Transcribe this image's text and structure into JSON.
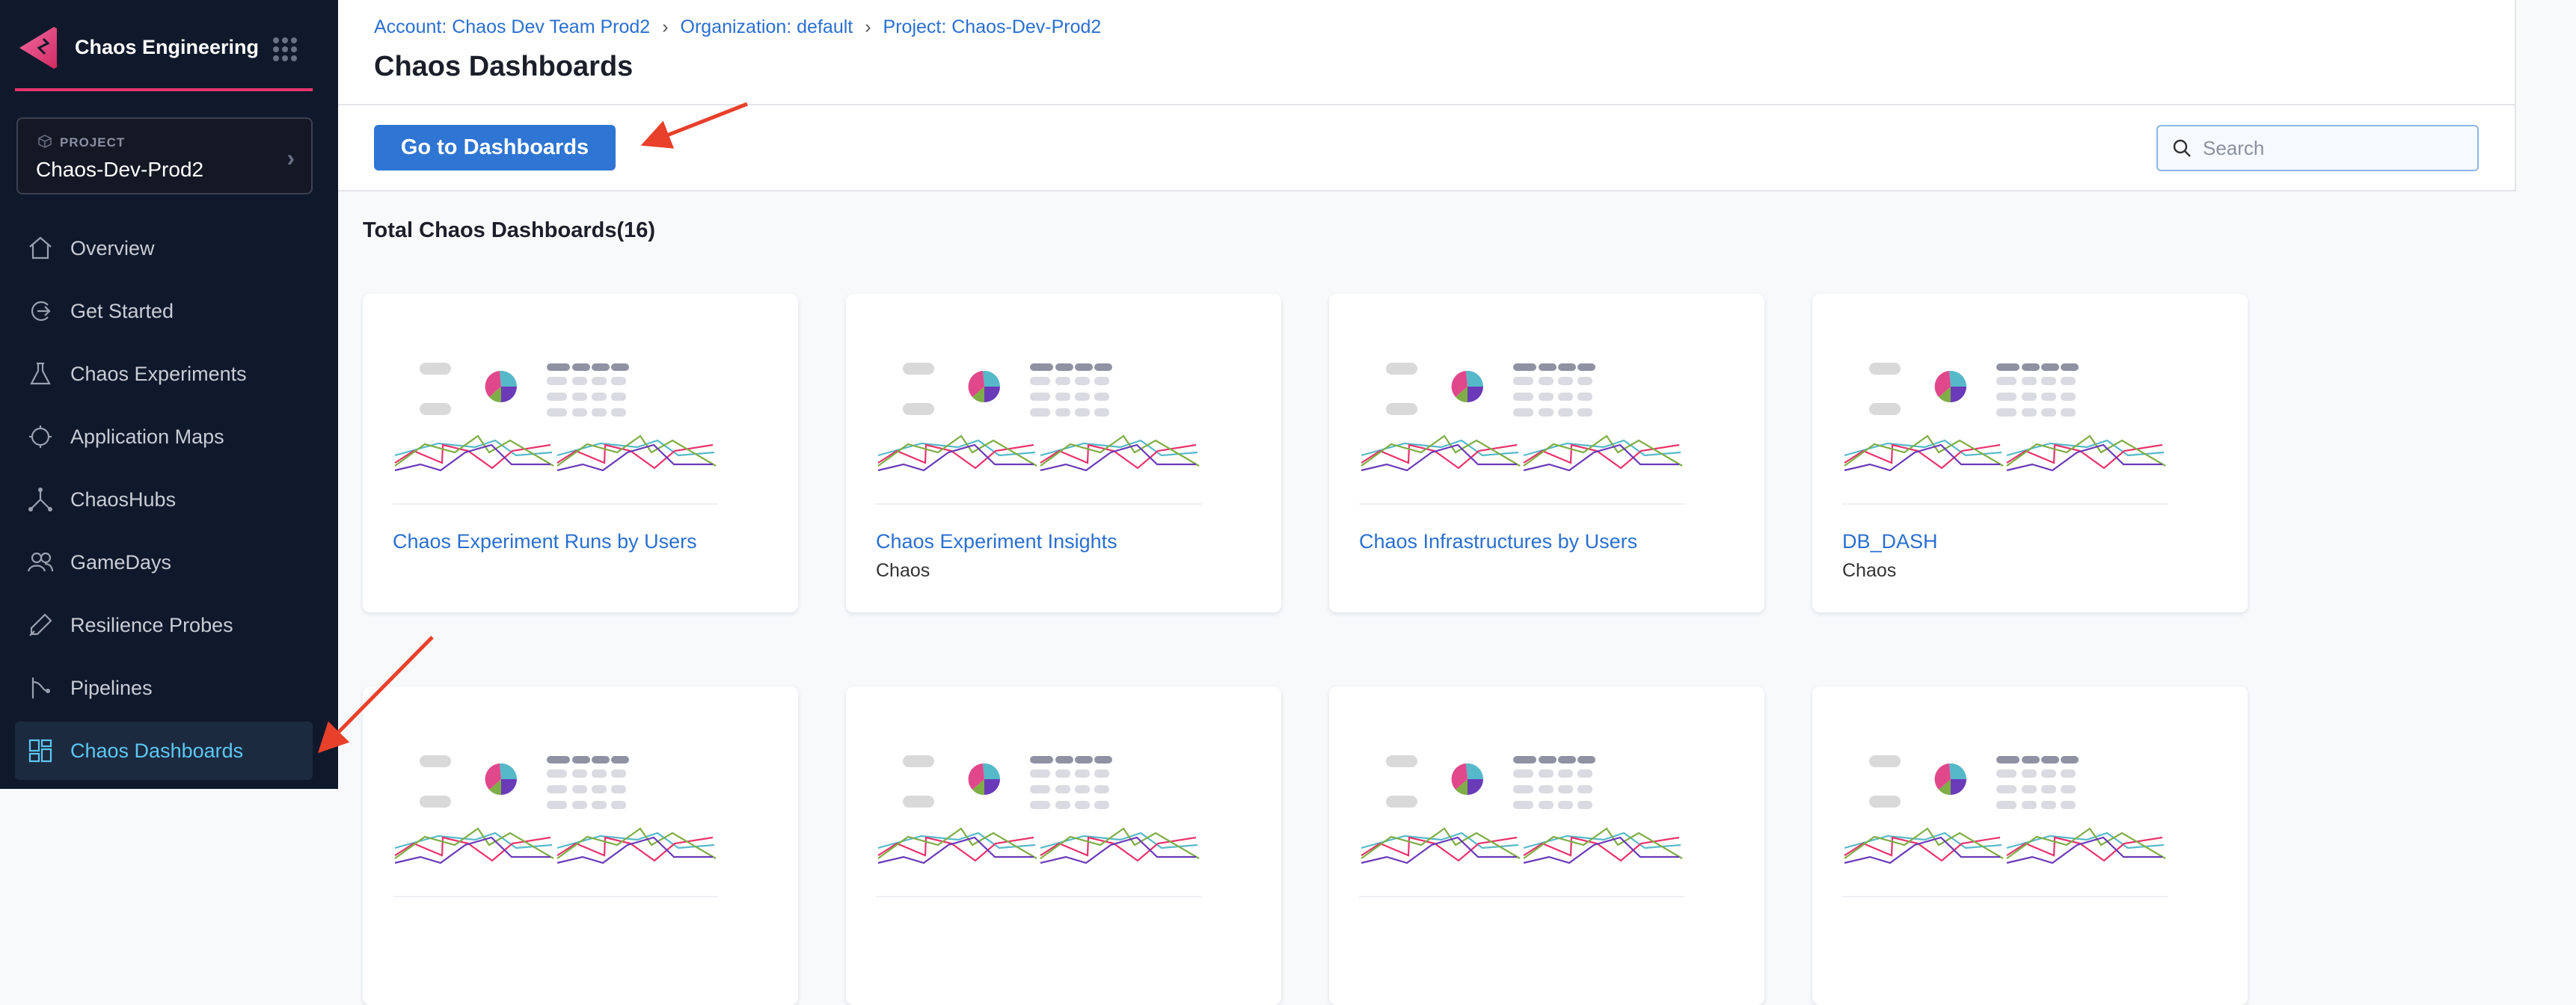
{
  "sidebar": {
    "module_title": "Chaos Engineering",
    "project_label": "PROJECT",
    "project_name": "Chaos-Dev-Prod2",
    "items": [
      {
        "label": "Overview",
        "icon": "home-icon"
      },
      {
        "label": "Get Started",
        "icon": "get-started-icon"
      },
      {
        "label": "Chaos Experiments",
        "icon": "flask-icon"
      },
      {
        "label": "Application Maps",
        "icon": "map-icon"
      },
      {
        "label": "ChaosHubs",
        "icon": "hub-icon"
      },
      {
        "label": "GameDays",
        "icon": "users-icon"
      },
      {
        "label": "Resilience Probes",
        "icon": "probe-icon"
      },
      {
        "label": "Pipelines",
        "icon": "pipeline-icon"
      },
      {
        "label": "Chaos Dashboards",
        "icon": "dashboard-icon",
        "active": true
      }
    ],
    "accent_color": "#e8336b"
  },
  "header": {
    "breadcrumbs": [
      "Account: Chaos Dev Team Prod2",
      "Organization: default",
      "Project: Chaos-Dev-Prod2"
    ],
    "title": "Chaos Dashboards"
  },
  "toolbar": {
    "go_label": "Go to Dashboards",
    "search_placeholder": "Search",
    "search_value": ""
  },
  "main": {
    "total_label": "Total Chaos Dashboards(16)",
    "cards": [
      {
        "title": "Chaos Experiment Runs by Users",
        "subtitle": ""
      },
      {
        "title": "Chaos Experiment Insights",
        "subtitle": "Chaos"
      },
      {
        "title": "Chaos Infrastructures by Users",
        "subtitle": ""
      },
      {
        "title": "DB_DASH",
        "subtitle": "Chaos"
      },
      {
        "title": "",
        "subtitle": ""
      },
      {
        "title": "",
        "subtitle": ""
      },
      {
        "title": "",
        "subtitle": ""
      },
      {
        "title": "",
        "subtitle": ""
      }
    ],
    "thumbnail_colors": {
      "pink": "#e0488b",
      "teal": "#56b9c9",
      "green": "#7fad46",
      "purple": "#6a3ab8",
      "red": "#e8336b"
    }
  },
  "brand_colors": {
    "primary": "#2f75d3",
    "sidebar_bg": "#0f192b",
    "active_text": "#5cc8f2"
  }
}
